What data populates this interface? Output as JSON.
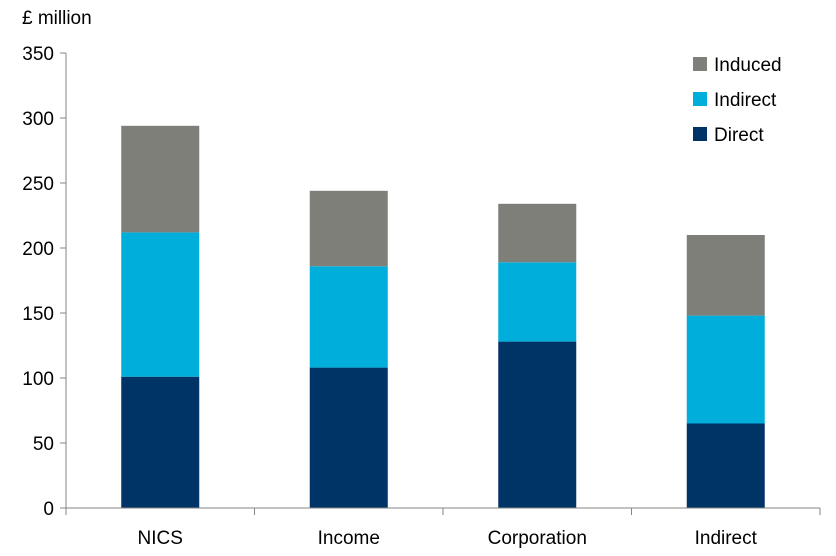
{
  "chart_data": {
    "type": "bar",
    "stacked": true,
    "unit_label": "£ million",
    "categories": [
      "NICS",
      "Income",
      "Corporation",
      "Indirect"
    ],
    "series": [
      {
        "name": "Direct",
        "color": "#003366",
        "values": [
          101,
          108,
          128,
          65
        ]
      },
      {
        "name": "Indirect",
        "color": "#00AEDB",
        "values": [
          111,
          78,
          61,
          83
        ]
      },
      {
        "name": "Induced",
        "color": "#7F7F7A",
        "values": [
          82,
          58,
          45,
          62
        ]
      }
    ],
    "legend_order": [
      "Induced",
      "Indirect",
      "Direct"
    ],
    "legend_position": "top-right",
    "ylim": [
      0,
      350
    ],
    "yticks": [
      0,
      50,
      100,
      150,
      200,
      250,
      300,
      350
    ],
    "grid": false
  }
}
